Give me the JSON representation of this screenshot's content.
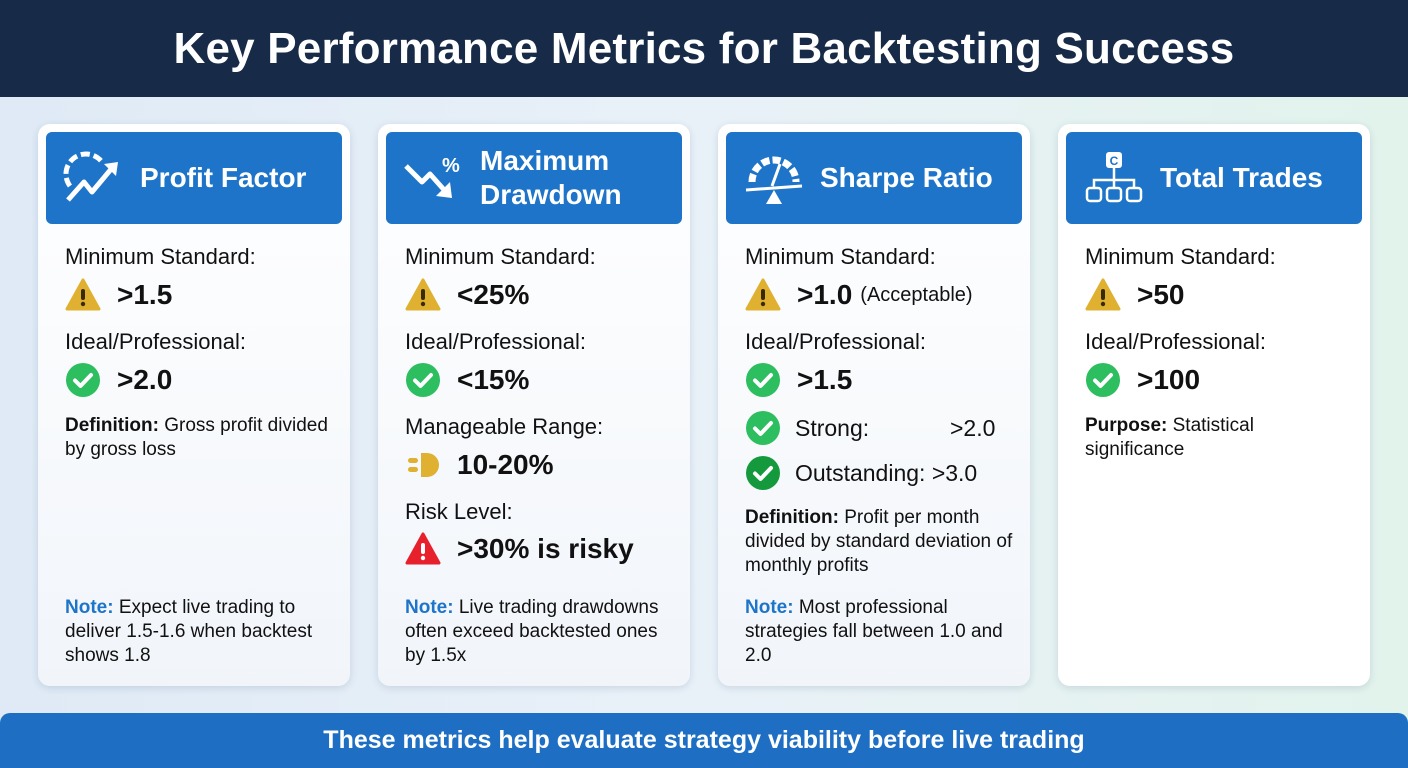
{
  "title": "Key Performance Metrics for Backtesting Success",
  "footer": "These metrics help evaluate strategy viability before live trading",
  "colors": {
    "header": "#172a47",
    "accent": "#1e74c8",
    "warning": "#e0b030",
    "success": "#2dbe60",
    "danger": "#e8202c"
  },
  "cards": [
    {
      "title": "Profit Factor",
      "icon": "trend-up-arrow-icon",
      "min_label": "Minimum Standard:",
      "min_value": ">1.5",
      "ideal_label": "Ideal/Professional:",
      "ideal_value": ">2.0",
      "def_label": "Definition:",
      "def_text": " Gross profit divided by gross loss",
      "note_label": "Note:",
      "note_text": " Expect live trading to deliver 1.5-1.6 when backtest shows 1.8"
    },
    {
      "title_line1": "Maximum",
      "title_line2": "Drawdown",
      "icon": "trend-down-percent-icon",
      "icon_text": "%",
      "min_label": "Minimum Standard:",
      "min_value": "<25%",
      "ideal_label": "Ideal/Professional:",
      "ideal_value": "<15%",
      "range_label": "Manageable Range:",
      "range_value": "10-20%",
      "risk_label": "Risk Level:",
      "risk_value": ">30% is risky",
      "note_label": "Note:",
      "note_text": " Live trading drawdowns often exceed backtested ones by 1.5x"
    },
    {
      "title": "Sharpe Ratio",
      "icon": "gauge-balance-icon",
      "min_label": "Minimum Standard:",
      "min_value": ">1.0",
      "min_suffix": "(Acceptable)",
      "ideal_label": "Ideal/Professional:",
      "ideal_value": ">1.5",
      "strong_label": "Strong:",
      "strong_value": ">2.0",
      "outstanding_label": "Outstanding:",
      "outstanding_value": ">3.0",
      "def_label": "Definition:",
      "def_text": " Profit per month divided by standard deviation of monthly profits",
      "note_label": "Note:",
      "note_text": " Most professional strategies fall between 1.0 and 2.0"
    },
    {
      "title": "Total Trades",
      "icon": "hierarchy-icon",
      "icon_text": "C",
      "min_label": "Minimum Standard:",
      "min_value": ">50",
      "ideal_label": "Ideal/Professional:",
      "ideal_value": ">100",
      "purpose_label": "Purpose:",
      "purpose_text": " Statistical significance"
    }
  ]
}
